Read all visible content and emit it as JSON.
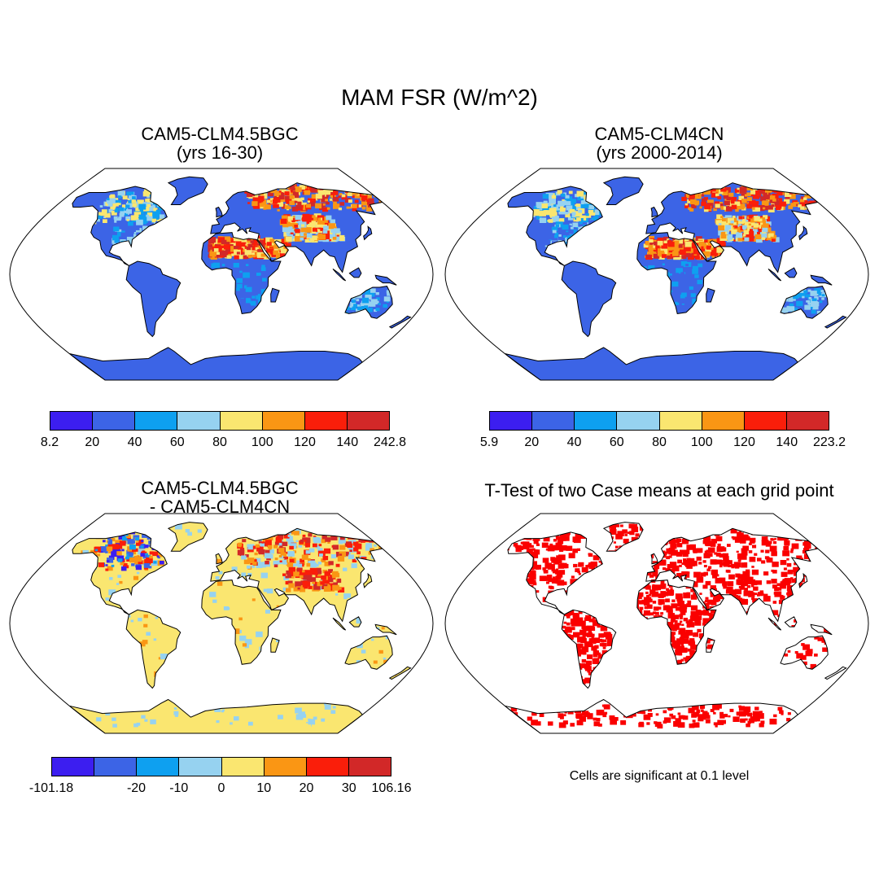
{
  "title": "MAM FSR (W/m^2)",
  "panels": [
    {
      "title_line1": "CAM5-CLM4.5BGC",
      "title_line2": "(yrs 16-30)",
      "colorbar_labels": [
        "8.2",
        "20",
        "40",
        "60",
        "80",
        "100",
        "120",
        "140",
        "242.8"
      ]
    },
    {
      "title_line1": "CAM5-CLM4CN",
      "title_line2": "(yrs 2000-2014)",
      "colorbar_labels": [
        "5.9",
        "20",
        "40",
        "60",
        "80",
        "100",
        "120",
        "140",
        "223.2"
      ]
    },
    {
      "title_line1": "CAM5-CLM4.5BGC",
      "title_line2": "- CAM5-CLM4CN",
      "colorbar_labels": [
        "-101.18",
        "",
        "-20",
        "-10",
        "0",
        "10",
        "20",
        "30",
        "106.16"
      ]
    },
    {
      "title_line1": "T-Test of two Case means at each grid point"
    }
  ],
  "note": "Cells are significant at 0.1 level",
  "colors": {
    "scale": [
      "#3c1ef0",
      "#3c64e6",
      "#0ea0f0",
      "#96d2f0",
      "#fae670",
      "#fa9614",
      "#fa1e0a",
      "#d22828"
    ],
    "significant": "#fa0000",
    "ocean": "#ffffff",
    "coast": "#000000"
  }
}
